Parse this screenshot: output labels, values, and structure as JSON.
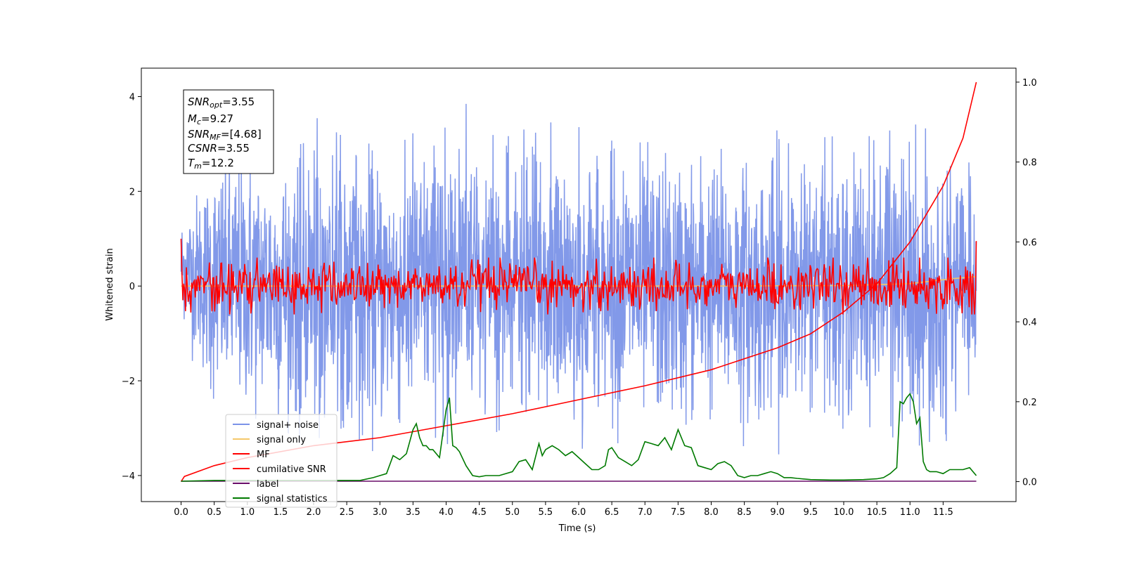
{
  "chart_data": {
    "type": "line",
    "xlabel": "Time (s)",
    "ylabel": "Whitened strain",
    "xlim": [
      -0.6,
      12.6
    ],
    "ylim": [
      -4.55,
      4.6
    ],
    "y2lim": [
      -0.05,
      1.035
    ],
    "x_ticks": [
      "0.0",
      "0.5",
      "1.0",
      "1.5",
      "2.0",
      "2.5",
      "3.0",
      "3.5",
      "4.0",
      "4.5",
      "5.0",
      "5.5",
      "6.0",
      "6.5",
      "7.0",
      "7.5",
      "8.0",
      "8.5",
      "9.0",
      "9.5",
      "10.0",
      "10.5",
      "11.0",
      "11.5"
    ],
    "y_ticks": [
      "−4",
      "−2",
      "0",
      "2",
      "4"
    ],
    "y2_ticks": [
      "0.0",
      "0.2",
      "0.4",
      "0.6",
      "0.8",
      "1.0"
    ],
    "annotation": {
      "snr_opt": {
        "sym": "SNR",
        "sub": "opt",
        "val": "=3.55"
      },
      "mc": {
        "sym": "M",
        "sub": "c",
        "val": "=9.27"
      },
      "snr_mf": {
        "sym": "SNR",
        "sub": "MF",
        "val": "=[4.68]"
      },
      "csnr": {
        "sym": "CSNR",
        "sub": "",
        "val": "=3.55"
      },
      "tm": {
        "sym": "T",
        "sub": "m",
        "val": "=12.2"
      }
    },
    "legend": [
      {
        "label": "signal+ noise",
        "color": "#7b93e8"
      },
      {
        "label": "signal only",
        "color": "#f5c86a"
      },
      {
        "label": "MF",
        "color": "#ff0000"
      },
      {
        "label": "cumilative SNR",
        "color": "#ff0000"
      },
      {
        "label": "label",
        "color": "#6a0d6a"
      },
      {
        "label": "signal statistics",
        "color": "#007a00"
      }
    ],
    "legend_position": "lower-left",
    "series": [
      {
        "name": "signal+ noise",
        "axis": "left",
        "color": "#7b93e8",
        "x": [
          0.0,
          0.5,
          1.0,
          1.5,
          2.0,
          2.5,
          3.0,
          3.5,
          4.0,
          4.27,
          4.5,
          5.0,
          5.5,
          6.0,
          6.5,
          7.0,
          7.5,
          8.0,
          8.5,
          9.0,
          9.5,
          10.0,
          10.5,
          11.0,
          11.5,
          12.0
        ],
        "upper": [
          1.7,
          3.2,
          3.3,
          3.3,
          3.6,
          3.6,
          3.3,
          3.6,
          3.7,
          4.15,
          3.3,
          3.3,
          3.6,
          3.4,
          3.5,
          3.4,
          3.3,
          3.4,
          3.2,
          3.3,
          3.4,
          3.3,
          3.5,
          3.6,
          3.4,
          2.6
        ],
        "lower": [
          -0.8,
          -3.1,
          -3.2,
          -3.3,
          -3.5,
          -3.5,
          -3.6,
          -3.6,
          -3.5,
          -3.3,
          -3.4,
          -3.3,
          -3.4,
          -3.5,
          -3.3,
          -3.5,
          -3.5,
          -3.3,
          -3.4,
          -3.6,
          -3.4,
          -3.3,
          -3.2,
          -3.9,
          -3.5,
          -2.0
        ]
      },
      {
        "name": "signal only",
        "axis": "left",
        "color": "#f5c86a",
        "x": [
          0.0,
          2.0,
          4.0,
          6.0,
          8.0,
          10.0,
          11.0,
          11.6,
          12.0
        ],
        "y": [
          0.0,
          0.0,
          0.0,
          0.0,
          0.0,
          0.01,
          0.05,
          0.15,
          0.2
        ]
      },
      {
        "name": "MF",
        "axis": "left",
        "color": "#ff0000",
        "x_start": 0.0,
        "x_end": 12.0,
        "start_value": 1.0,
        "end_value": 0.95,
        "amplitude": 0.25,
        "peak": 0.6
      },
      {
        "name": "cumilative SNR",
        "axis": "right",
        "color": "#ff0000",
        "x": [
          0.0,
          0.05,
          0.5,
          1.0,
          2.0,
          3.0,
          4.0,
          5.0,
          6.0,
          7.0,
          8.0,
          9.0,
          9.5,
          10.0,
          10.5,
          11.0,
          11.5,
          11.8,
          12.0
        ],
        "y": [
          0.0,
          0.013,
          0.04,
          0.06,
          0.09,
          0.11,
          0.14,
          0.17,
          0.205,
          0.24,
          0.28,
          0.335,
          0.37,
          0.425,
          0.495,
          0.6,
          0.74,
          0.86,
          1.0
        ]
      },
      {
        "name": "label",
        "axis": "right",
        "color": "#6a0d6a",
        "x": [
          0.0,
          12.0
        ],
        "y": [
          0.001,
          0.001
        ]
      },
      {
        "name": "signal statistics",
        "axis": "right",
        "color": "#007a00",
        "x": [
          0.0,
          0.5,
          1.0,
          1.5,
          2.0,
          2.5,
          2.7,
          2.9,
          3.0,
          3.1,
          3.2,
          3.3,
          3.4,
          3.5,
          3.55,
          3.6,
          3.65,
          3.7,
          3.75,
          3.8,
          3.9,
          4.0,
          4.05,
          4.1,
          4.15,
          4.2,
          4.3,
          4.4,
          4.5,
          4.6,
          4.8,
          5.0,
          5.1,
          5.2,
          5.3,
          5.4,
          5.45,
          5.5,
          5.6,
          5.7,
          5.8,
          5.9,
          6.0,
          6.1,
          6.2,
          6.3,
          6.4,
          6.45,
          6.5,
          6.6,
          6.7,
          6.8,
          6.9,
          7.0,
          7.1,
          7.2,
          7.3,
          7.4,
          7.5,
          7.6,
          7.7,
          7.8,
          7.9,
          8.0,
          8.1,
          8.2,
          8.3,
          8.4,
          8.5,
          8.6,
          8.7,
          8.8,
          8.9,
          9.0,
          9.1,
          9.2,
          9.3,
          9.5,
          9.8,
          10.0,
          10.3,
          10.5,
          10.6,
          10.7,
          10.8,
          10.85,
          10.9,
          10.95,
          11.0,
          11.05,
          11.1,
          11.15,
          11.2,
          11.25,
          11.3,
          11.4,
          11.5,
          11.6,
          11.7,
          11.8,
          11.9,
          12.0
        ],
        "y": [
          0.001,
          0.003,
          0.003,
          0.003,
          0.003,
          0.003,
          0.003,
          0.01,
          0.015,
          0.02,
          0.065,
          0.055,
          0.07,
          0.13,
          0.145,
          0.11,
          0.09,
          0.09,
          0.08,
          0.08,
          0.06,
          0.18,
          0.21,
          0.09,
          0.085,
          0.075,
          0.04,
          0.015,
          0.012,
          0.015,
          0.015,
          0.025,
          0.05,
          0.055,
          0.03,
          0.095,
          0.065,
          0.08,
          0.09,
          0.08,
          0.065,
          0.075,
          0.06,
          0.045,
          0.03,
          0.03,
          0.04,
          0.08,
          0.085,
          0.06,
          0.05,
          0.04,
          0.055,
          0.1,
          0.095,
          0.09,
          0.11,
          0.08,
          0.13,
          0.09,
          0.085,
          0.04,
          0.035,
          0.03,
          0.045,
          0.05,
          0.04,
          0.015,
          0.01,
          0.015,
          0.015,
          0.02,
          0.025,
          0.02,
          0.01,
          0.01,
          0.008,
          0.005,
          0.004,
          0.004,
          0.005,
          0.007,
          0.01,
          0.02,
          0.035,
          0.2,
          0.195,
          0.21,
          0.22,
          0.2,
          0.145,
          0.16,
          0.05,
          0.03,
          0.025,
          0.025,
          0.02,
          0.03,
          0.03,
          0.03,
          0.035,
          0.015
        ]
      }
    ]
  }
}
